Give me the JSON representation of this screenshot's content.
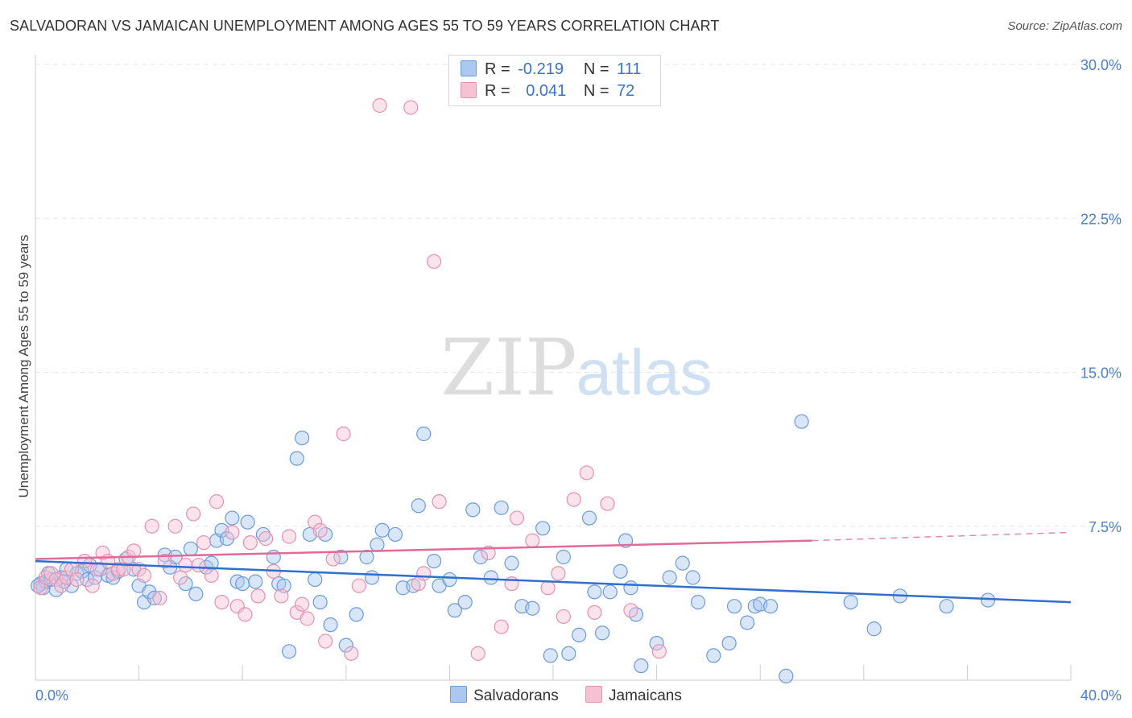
{
  "header": {
    "title": "SALVADORAN VS JAMAICAN UNEMPLOYMENT AMONG AGES 55 TO 59 YEARS CORRELATION CHART",
    "source": "Source: ZipAtlas.com"
  },
  "watermark": {
    "zip": "ZIP",
    "atlas": "atlas"
  },
  "legend": {
    "rows": [
      {
        "r_label": "R =",
        "r_value": "-0.219",
        "n_label": "N =",
        "n_value": "111",
        "color": "#aac8f0",
        "border": "#6a9be0"
      },
      {
        "r_label": "R =",
        "r_value": "0.041",
        "n_label": "N =",
        "n_value": "72",
        "color": "#f7c0d3",
        "border": "#e890b0"
      }
    ]
  },
  "bottom_legend": {
    "items": [
      {
        "label": "Salvadorans",
        "color": "#aac8f0",
        "border": "#6a9be0"
      },
      {
        "label": "Jamaicans",
        "color": "#f7c0d3",
        "border": "#e890b0"
      }
    ]
  },
  "chart_data": {
    "type": "scatter",
    "title": "SALVADORAN VS JAMAICAN UNEMPLOYMENT AMONG AGES 55 TO 59 YEARS CORRELATION CHART",
    "xlabel": "",
    "ylabel": "Unemployment Among Ages 55 to 59 years",
    "xlim": [
      0,
      40
    ],
    "ylim": [
      0,
      30
    ],
    "x_tick_labels": [
      {
        "value": 0,
        "label": "0.0%"
      },
      {
        "value": 40,
        "label": "40.0%"
      }
    ],
    "y_tick_labels": [
      {
        "value": 7.5,
        "label": "7.5%"
      },
      {
        "value": 15,
        "label": "15.0%"
      },
      {
        "value": 22.5,
        "label": "22.5%"
      },
      {
        "value": 30,
        "label": "30.0%"
      }
    ],
    "series": [
      {
        "name": "Salvadorans",
        "color": "#6a9be0",
        "fill": "#aac8f0",
        "trend": {
          "x": [
            0,
            40
          ],
          "y": [
            5.8,
            3.8
          ],
          "color": "#2f6fce"
        },
        "points": [
          [
            0.2,
            4.7
          ],
          [
            0.3,
            4.5
          ],
          [
            0.4,
            4.8
          ],
          [
            0.5,
            5.2
          ],
          [
            0.6,
            4.9
          ],
          [
            0.8,
            4.4
          ],
          [
            1.0,
            5.0
          ],
          [
            1.2,
            5.4
          ],
          [
            1.4,
            4.6
          ],
          [
            1.6,
            5.2
          ],
          [
            1.8,
            5.3
          ],
          [
            2.0,
            4.9
          ],
          [
            2.3,
            5.0
          ],
          [
            2.5,
            5.4
          ],
          [
            2.8,
            5.1
          ],
          [
            3.0,
            5.0
          ],
          [
            3.2,
            5.3
          ],
          [
            3.5,
            5.9
          ],
          [
            3.8,
            5.4
          ],
          [
            4.0,
            4.6
          ],
          [
            4.2,
            3.8
          ],
          [
            4.4,
            4.3
          ],
          [
            4.6,
            4.0
          ],
          [
            5.0,
            6.1
          ],
          [
            5.2,
            5.5
          ],
          [
            5.4,
            6.0
          ],
          [
            5.8,
            4.7
          ],
          [
            6.0,
            6.4
          ],
          [
            6.2,
            4.2
          ],
          [
            6.6,
            5.5
          ],
          [
            6.8,
            5.7
          ],
          [
            7.0,
            6.8
          ],
          [
            7.2,
            7.3
          ],
          [
            7.4,
            6.9
          ],
          [
            7.6,
            7.9
          ],
          [
            7.8,
            4.8
          ],
          [
            8.0,
            4.7
          ],
          [
            8.2,
            7.7
          ],
          [
            8.5,
            4.8
          ],
          [
            8.8,
            7.1
          ],
          [
            9.2,
            6.0
          ],
          [
            9.4,
            4.7
          ],
          [
            9.6,
            4.6
          ],
          [
            9.8,
            1.4
          ],
          [
            10.1,
            10.8
          ],
          [
            10.3,
            11.8
          ],
          [
            10.6,
            7.1
          ],
          [
            10.8,
            4.9
          ],
          [
            11.0,
            3.8
          ],
          [
            11.2,
            7.1
          ],
          [
            11.4,
            2.7
          ],
          [
            11.8,
            6.0
          ],
          [
            12.0,
            1.7
          ],
          [
            12.4,
            3.2
          ],
          [
            12.8,
            6.0
          ],
          [
            13.0,
            5.0
          ],
          [
            13.2,
            6.6
          ],
          [
            13.4,
            7.3
          ],
          [
            13.9,
            7.1
          ],
          [
            14.2,
            4.5
          ],
          [
            14.6,
            4.6
          ],
          [
            14.8,
            8.5
          ],
          [
            15.0,
            12.0
          ],
          [
            15.4,
            5.8
          ],
          [
            15.6,
            4.6
          ],
          [
            16.2,
            3.4
          ],
          [
            16.6,
            3.8
          ],
          [
            16.9,
            8.3
          ],
          [
            17.2,
            6.0
          ],
          [
            17.6,
            5.0
          ],
          [
            18.0,
            8.4
          ],
          [
            18.4,
            5.7
          ],
          [
            18.8,
            3.6
          ],
          [
            19.2,
            3.5
          ],
          [
            19.6,
            7.4
          ],
          [
            19.9,
            1.2
          ],
          [
            20.4,
            6.0
          ],
          [
            20.6,
            1.3
          ],
          [
            21.0,
            2.2
          ],
          [
            21.4,
            7.9
          ],
          [
            21.6,
            4.3
          ],
          [
            21.9,
            2.3
          ],
          [
            22.2,
            4.3
          ],
          [
            22.6,
            5.3
          ],
          [
            22.8,
            6.8
          ],
          [
            23.0,
            4.5
          ],
          [
            23.2,
            3.2
          ],
          [
            23.4,
            0.7
          ],
          [
            24.0,
            1.8
          ],
          [
            24.5,
            5.0
          ],
          [
            25.0,
            5.7
          ],
          [
            25.4,
            5.0
          ],
          [
            25.6,
            3.8
          ],
          [
            26.2,
            1.2
          ],
          [
            26.8,
            1.8
          ],
          [
            27.0,
            3.6
          ],
          [
            27.5,
            2.8
          ],
          [
            27.8,
            3.6
          ],
          [
            28.0,
            3.7
          ],
          [
            28.4,
            3.6
          ],
          [
            29.0,
            0.2
          ],
          [
            29.6,
            12.6
          ],
          [
            31.5,
            3.8
          ],
          [
            32.4,
            2.5
          ],
          [
            33.4,
            4.1
          ],
          [
            35.2,
            3.6
          ],
          [
            36.8,
            3.9
          ],
          [
            0.1,
            4.6
          ],
          [
            1.1,
            4.8
          ],
          [
            2.1,
            5.6
          ],
          [
            16.0,
            4.9
          ]
        ]
      },
      {
        "name": "Jamaicans",
        "color": "#e890b0",
        "fill": "#f7c0d3",
        "trend": {
          "x": [
            0,
            30
          ],
          "y": [
            5.9,
            6.8
          ],
          "color": "#e06a98",
          "dashed_to": [
            40,
            7.2
          ]
        },
        "points": [
          [
            0.2,
            4.5
          ],
          [
            0.4,
            5.0
          ],
          [
            0.6,
            5.2
          ],
          [
            0.8,
            4.9
          ],
          [
            1.0,
            4.6
          ],
          [
            1.2,
            5.0
          ],
          [
            1.4,
            5.4
          ],
          [
            1.6,
            4.9
          ],
          [
            1.9,
            5.8
          ],
          [
            2.2,
            4.6
          ],
          [
            2.4,
            5.4
          ],
          [
            2.6,
            6.2
          ],
          [
            2.8,
            5.8
          ],
          [
            3.0,
            5.2
          ],
          [
            3.2,
            5.4
          ],
          [
            3.4,
            5.4
          ],
          [
            3.6,
            6.0
          ],
          [
            3.8,
            6.3
          ],
          [
            4.0,
            5.4
          ],
          [
            4.2,
            5.1
          ],
          [
            4.5,
            7.5
          ],
          [
            4.8,
            4.0
          ],
          [
            5.0,
            5.8
          ],
          [
            5.4,
            7.5
          ],
          [
            5.6,
            5.0
          ],
          [
            5.8,
            5.6
          ],
          [
            6.1,
            8.1
          ],
          [
            6.3,
            5.6
          ],
          [
            6.5,
            6.7
          ],
          [
            6.8,
            5.1
          ],
          [
            7.0,
            8.7
          ],
          [
            7.2,
            3.8
          ],
          [
            7.6,
            7.2
          ],
          [
            7.8,
            3.6
          ],
          [
            8.1,
            3.2
          ],
          [
            8.3,
            6.7
          ],
          [
            8.6,
            4.1
          ],
          [
            8.9,
            6.9
          ],
          [
            9.2,
            5.3
          ],
          [
            9.5,
            4.1
          ],
          [
            9.8,
            7.0
          ],
          [
            10.1,
            3.3
          ],
          [
            10.3,
            3.7
          ],
          [
            10.5,
            3.0
          ],
          [
            10.8,
            7.7
          ],
          [
            11.0,
            7.3
          ],
          [
            11.2,
            1.9
          ],
          [
            11.5,
            5.9
          ],
          [
            11.9,
            12.0
          ],
          [
            12.2,
            1.3
          ],
          [
            12.5,
            4.6
          ],
          [
            13.3,
            28.0
          ],
          [
            14.5,
            27.9
          ],
          [
            14.8,
            4.7
          ],
          [
            15.0,
            5.2
          ],
          [
            15.4,
            20.4
          ],
          [
            15.6,
            8.7
          ],
          [
            17.1,
            1.3
          ],
          [
            17.5,
            6.2
          ],
          [
            18.0,
            2.6
          ],
          [
            18.4,
            4.7
          ],
          [
            18.6,
            7.9
          ],
          [
            19.2,
            6.8
          ],
          [
            19.8,
            4.5
          ],
          [
            20.2,
            5.2
          ],
          [
            20.4,
            3.1
          ],
          [
            20.8,
            8.8
          ],
          [
            21.3,
            10.1
          ],
          [
            21.6,
            3.3
          ],
          [
            22.1,
            8.6
          ],
          [
            23.0,
            3.4
          ],
          [
            24.1,
            1.4
          ]
        ]
      }
    ]
  }
}
